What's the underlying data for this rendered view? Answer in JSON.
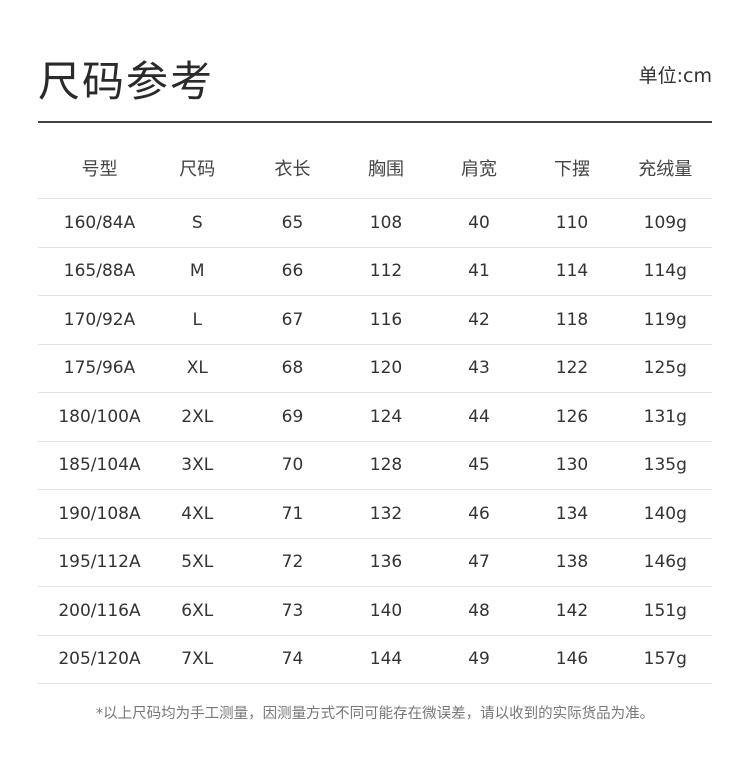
{
  "title": "尺码参考",
  "unit": "单位:cm",
  "table": {
    "headers": [
      "号型",
      "尺码",
      "衣长",
      "胸围",
      "肩宽",
      "下摆",
      "充绒量"
    ],
    "rows": [
      [
        "160/84A",
        "S",
        "65",
        "108",
        "40",
        "110",
        "109g"
      ],
      [
        "165/88A",
        "M",
        "66",
        "112",
        "41",
        "114",
        "114g"
      ],
      [
        "170/92A",
        "L",
        "67",
        "116",
        "42",
        "118",
        "119g"
      ],
      [
        "175/96A",
        "XL",
        "68",
        "120",
        "43",
        "122",
        "125g"
      ],
      [
        "180/100A",
        "2XL",
        "69",
        "124",
        "44",
        "126",
        "131g"
      ],
      [
        "185/104A",
        "3XL",
        "70",
        "128",
        "45",
        "130",
        "135g"
      ],
      [
        "190/108A",
        "4XL",
        "71",
        "132",
        "46",
        "134",
        "140g"
      ],
      [
        "195/112A",
        "5XL",
        "72",
        "136",
        "47",
        "138",
        "146g"
      ],
      [
        "200/116A",
        "6XL",
        "73",
        "140",
        "48",
        "142",
        "151g"
      ],
      [
        "205/120A",
        "7XL",
        "74",
        "144",
        "49",
        "146",
        "157g"
      ]
    ]
  },
  "footnote": "*以上尺码均为手工测量，因测量方式不同可能存在微误差，请以收到的实际货品为准。"
}
